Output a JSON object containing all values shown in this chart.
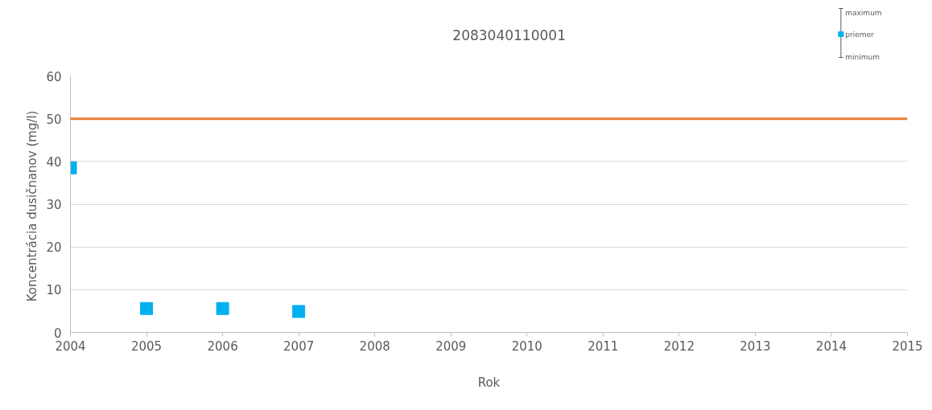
{
  "chart_data": {
    "type": "scatter",
    "title": "2083040110001",
    "xlabel": "Rok",
    "ylabel": "Koncentrácia dusičnanov  (mg/l)",
    "x": [
      2004,
      2005,
      2006,
      2007
    ],
    "series": [
      {
        "name": "priemer",
        "color": "#00b0f0",
        "values": [
          38.5,
          5.6,
          5.6,
          4.9
        ]
      }
    ],
    "marker": "square",
    "xlim": [
      2004,
      2015
    ],
    "xticks": [
      2004,
      2005,
      2006,
      2007,
      2008,
      2009,
      2010,
      2011,
      2012,
      2013,
      2014,
      2015
    ],
    "ylim": [
      0,
      60
    ],
    "yticks": [
      0,
      10,
      20,
      30,
      40,
      50,
      60
    ],
    "ref_lines": [
      {
        "axis": "y",
        "value": 50,
        "label": null,
        "color": "#ed7d31"
      }
    ],
    "grid": "y",
    "legend": "top right",
    "annotations": [
      "maximum",
      "minimum"
    ]
  }
}
